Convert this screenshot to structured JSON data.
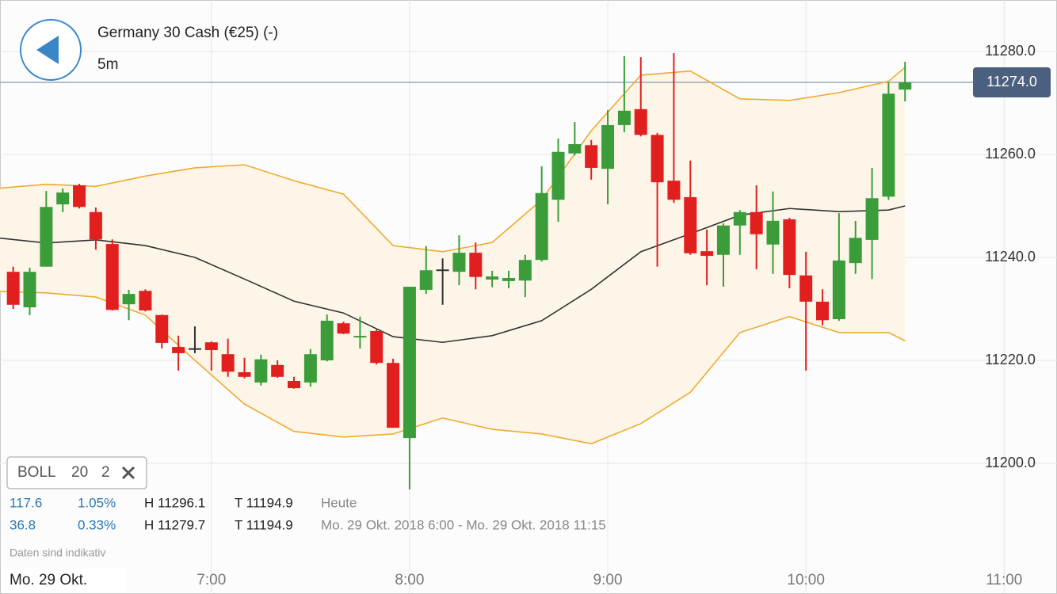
{
  "header": {
    "title": "Germany 30 Cash (€25) (-)",
    "interval": "5m"
  },
  "indicator": {
    "name": "BOLL",
    "period": 20,
    "deviation": 2
  },
  "stats": [
    {
      "change": "117.6",
      "percent": "1.05%",
      "high": "H 11296.1",
      "low": "T 11194.9",
      "range": "Heute"
    },
    {
      "change": "36.8",
      "percent": "0.33%",
      "high": "H 11279.7",
      "low": "T 11194.9",
      "range": "Mo. 29 Okt. 2018 6:00 - Mo. 29 Okt. 2018 11:15"
    }
  ],
  "disclaimer": "Daten sind indikativ",
  "date_label": "Mo. 29 Okt.",
  "chart_data": {
    "type": "candlestick",
    "x": [
      "6:00",
      "6:05",
      "6:10",
      "6:15",
      "6:20",
      "6:25",
      "6:30",
      "6:35",
      "6:40",
      "6:45",
      "6:50",
      "6:55",
      "7:00",
      "7:05",
      "7:10",
      "7:15",
      "7:20",
      "7:25",
      "7:30",
      "7:35",
      "7:40",
      "7:45",
      "7:50",
      "7:55",
      "8:00",
      "8:05",
      "8:10",
      "8:15",
      "8:20",
      "8:25",
      "8:30",
      "8:35",
      "8:40",
      "8:45",
      "8:50",
      "8:55",
      "9:00",
      "9:05",
      "9:10",
      "9:15",
      "9:20",
      "9:25",
      "9:30",
      "9:35",
      "9:40",
      "9:45",
      "9:50",
      "9:55",
      "10:00",
      "10:05",
      "10:10",
      "10:15",
      "10:20",
      "10:25",
      "10:30"
    ],
    "open": [
      11237.2,
      11230.3,
      11238.2,
      11250.3,
      11254,
      11248.8,
      11242.6,
      11230.9,
      11233.5,
      11228.8,
      11222.6,
      11222.2,
      11223.5,
      11221.2,
      11217.7,
      11215.7,
      11219.1,
      11216,
      11215.7,
      11220,
      11227.2,
      11224.3,
      11225.7,
      11219.5,
      11204.9,
      11233.7,
      11237.5,
      11237.2,
      11240.9,
      11235.7,
      11235.4,
      11235.5,
      11239.5,
      11251.2,
      11260.2,
      11261.8,
      11257.2,
      11265.7,
      11268.8,
      11263.8,
      11254.9,
      11251.7,
      11241.2,
      11240.5,
      11246.2,
      11248.8,
      11242.5,
      11247.4,
      11236.5,
      11231.4,
      11228,
      11238.9,
      11243.4,
      11251.8,
      11272.6
    ],
    "high": [
      11238.2,
      11238,
      11252.9,
      11253.4,
      11254.3,
      11249.7,
      11243.5,
      11233.7,
      11233.8,
      11228.9,
      11224.8,
      11226.6,
      11223.7,
      11224.2,
      11220.5,
      11221.1,
      11220,
      11216.8,
      11222.2,
      11228.9,
      11227.5,
      11228.5,
      11226,
      11220.3,
      11234.3,
      11242.2,
      11239.8,
      11244.3,
      11242.9,
      11237.4,
      11237.4,
      11240.5,
      11257.7,
      11263.1,
      11266.3,
      11262.8,
      11268.6,
      11279.1,
      11278.9,
      11264.2,
      11279.7,
      11258.8,
      11245.4,
      11246.6,
      11249.2,
      11254,
      11252.8,
      11247.7,
      11241.1,
      11233.8,
      11248.6,
      11247.1,
      11257.4,
      11274,
      11278
    ],
    "low": [
      11230,
      11228.8,
      11238.2,
      11248.8,
      11249.5,
      11241.5,
      11229.7,
      11227.8,
      11229.5,
      11222.3,
      11218,
      11221.4,
      11218,
      11216.8,
      11216.5,
      11215.1,
      11216.6,
      11214.5,
      11214.9,
      11219.8,
      11225.1,
      11222.3,
      11219.2,
      11206.9,
      11194.9,
      11232.9,
      11230.8,
      11234.6,
      11233.8,
      11234.2,
      11234,
      11232.3,
      11239.2,
      11246.9,
      11259.8,
      11255.1,
      11250.3,
      11264.3,
      11263.5,
      11238.2,
      11250.6,
      11240.5,
      11234.6,
      11234.3,
      11240.5,
      11237.7,
      11236.8,
      11234,
      11218,
      11226.8,
      11227.7,
      11236.8,
      11235.8,
      11251.2,
      11270.3
    ],
    "close": [
      11230.8,
      11237.2,
      11249.8,
      11252.6,
      11249.8,
      11243.5,
      11229.8,
      11232.9,
      11229.7,
      11223.4,
      11221.4,
      11222.2,
      11222,
      11217.8,
      11216.8,
      11220.2,
      11216.8,
      11214.6,
      11221.2,
      11227.7,
      11225.2,
      11224.6,
      11219.5,
      11206.9,
      11234.3,
      11237.5,
      11237.5,
      11240.9,
      11236.2,
      11236.3,
      11236,
      11239.5,
      11252.5,
      11260.5,
      11262,
      11257.4,
      11265.7,
      11268.5,
      11263.8,
      11254.6,
      11251.2,
      11240.8,
      11240.3,
      11246.2,
      11248.8,
      11244.5,
      11247.1,
      11236.6,
      11231.4,
      11227.8,
      11239.4,
      11243.8,
      11251.5,
      11271.8,
      11274
    ],
    "up_color": "#3a9d3a",
    "down_color": "#e21f1f",
    "flat_color": "#333333",
    "overlays": [
      {
        "color": "#f0aa2e",
        "x": [
          "5:55",
          "6:10",
          "6:25",
          "6:40",
          "6:55",
          "7:10",
          "7:25",
          "7:40",
          "7:55",
          "8:10",
          "8:25",
          "8:40",
          "8:55",
          "9:10",
          "9:25",
          "9:40",
          "9:55",
          "10:10",
          "10:25",
          "10:30"
        ],
        "values": [
          11253.4,
          11254.2,
          11253.8,
          11255.8,
          11257.4,
          11258,
          11254.9,
          11252.3,
          11242.3,
          11241.1,
          11242.9,
          11251.2,
          11264.6,
          11275.4,
          11276.2,
          11270.8,
          11270.5,
          11272,
          11274.2,
          11276.9
        ]
      },
      {
        "color": "#333333",
        "x": [
          "5:55",
          "6:10",
          "6:25",
          "6:40",
          "6:55",
          "7:10",
          "7:25",
          "7:40",
          "7:55",
          "8:10",
          "8:25",
          "8:40",
          "8:55",
          "9:10",
          "9:25",
          "9:40",
          "9:55",
          "10:10",
          "10:25",
          "10:30"
        ],
        "values": [
          11243.8,
          11242.8,
          11243.4,
          11242.3,
          11240,
          11235.8,
          11231.5,
          11229.2,
          11224.6,
          11223.5,
          11224.8,
          11227.7,
          11233.8,
          11241.1,
          11244.6,
          11248.2,
          11249.5,
          11248.9,
          11249.2,
          11250
        ]
      },
      {
        "color": "#f0aa2e",
        "x": [
          "5:55",
          "6:10",
          "6:25",
          "6:40",
          "6:55",
          "7:10",
          "7:25",
          "7:40",
          "7:55",
          "8:10",
          "8:25",
          "8:40",
          "8:55",
          "9:10",
          "9:25",
          "9:40",
          "9:55",
          "10:10",
          "10:25",
          "10:30"
        ],
        "values": [
          11233.4,
          11233.1,
          11232.3,
          11228.8,
          11220,
          11211.5,
          11206.2,
          11205.1,
          11205.7,
          11208.8,
          11206.6,
          11205.7,
          11203.8,
          11207.7,
          11213.8,
          11225.4,
          11228.5,
          11225.4,
          11225.4,
          11223.8
        ]
      }
    ],
    "band_fill": "#fdf5e8",
    "current_price": {
      "value": 11274,
      "label": "11274.0"
    },
    "xlim": [
      "5:56",
      "11:16"
    ],
    "xticks": [
      "7:00",
      "8:00",
      "9:00",
      "10:00",
      "11:00"
    ],
    "ylim": [
      11180,
      11290
    ],
    "yticks": [
      {
        "value": 11200,
        "label": "11200.0"
      },
      {
        "value": 11220,
        "label": "11220.0"
      },
      {
        "value": 11240,
        "label": "11240.0"
      },
      {
        "value": 11260,
        "label": "11260.0"
      },
      {
        "value": 11280,
        "label": "11280.0"
      }
    ],
    "grid": true
  }
}
